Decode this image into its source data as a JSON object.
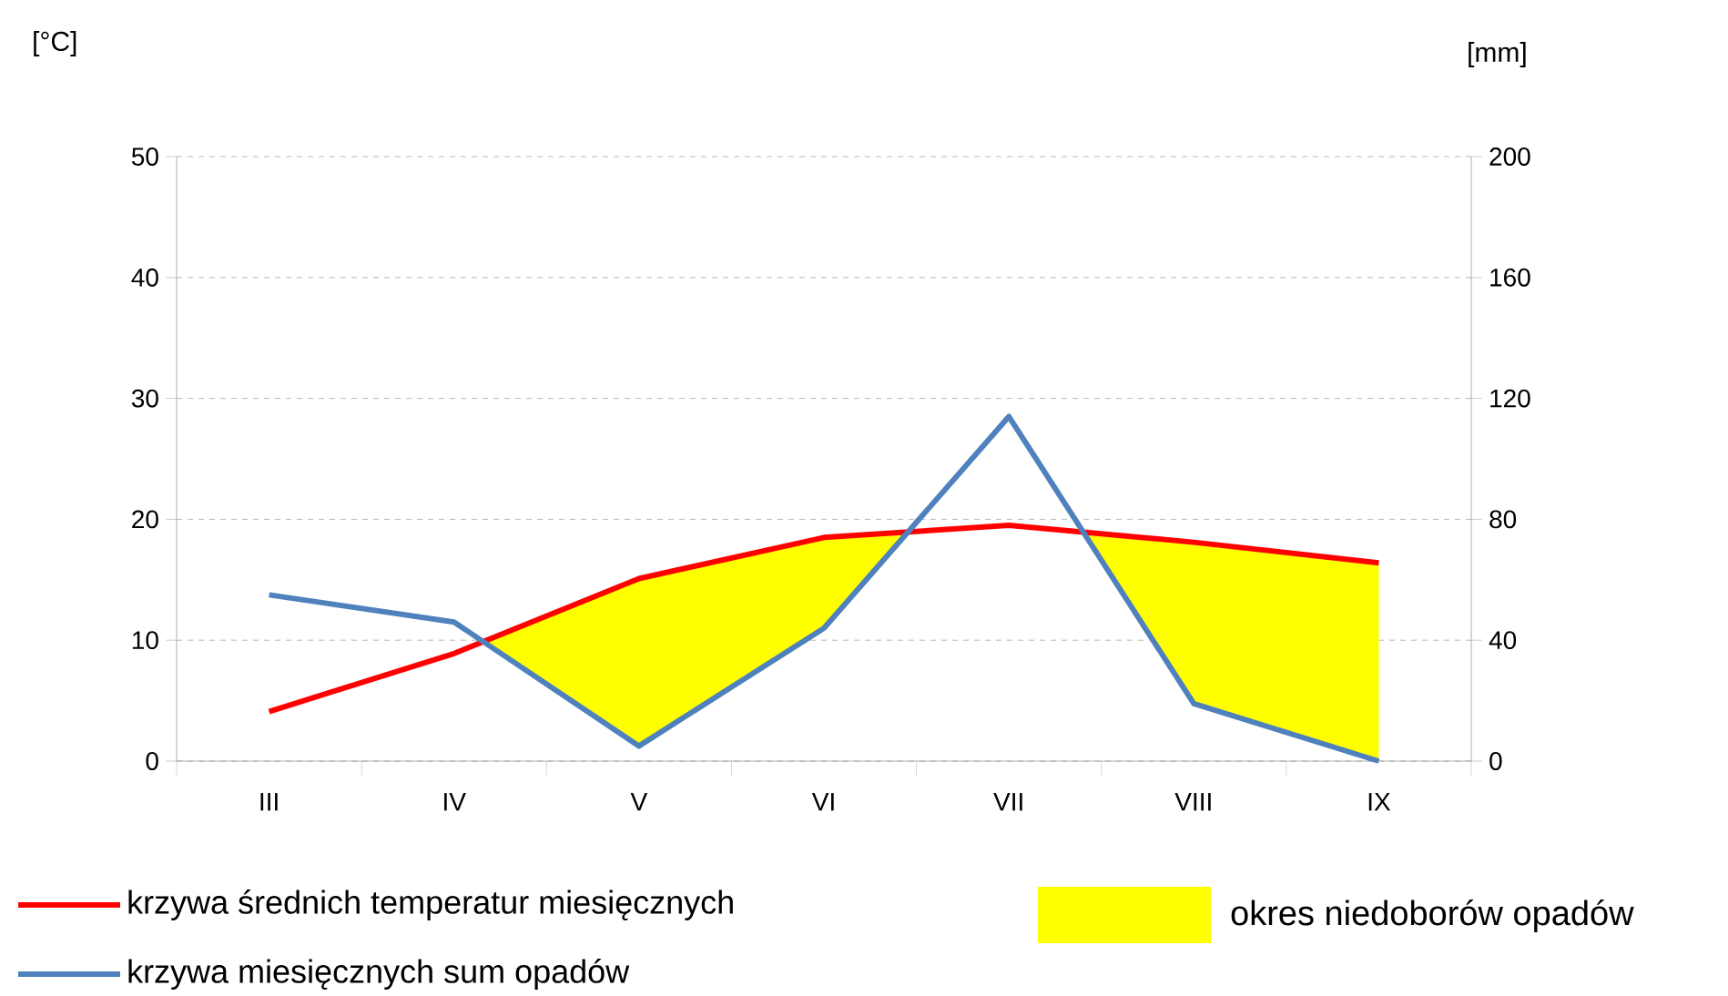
{
  "chart_data": {
    "type": "line",
    "categories": [
      "III",
      "IV",
      "V",
      "VI",
      "VII",
      "VIII",
      "IX"
    ],
    "ylabel": "[°C]",
    "y2label": "[mm]",
    "ylim": [
      0,
      50
    ],
    "yticks": [
      0,
      10,
      20,
      30,
      40,
      50
    ],
    "y2lim": [
      0,
      200
    ],
    "y2ticks": [
      0,
      40,
      80,
      120,
      160,
      200
    ],
    "grid": "y",
    "legend": "bottom",
    "series": [
      {
        "name": "krzywa średnich temperatur miesięcznych",
        "color": "#ff0000",
        "values": [
          4.1,
          8.9,
          15.1,
          18.5,
          19.5,
          18.1,
          16.4
        ],
        "lower": [
          4.1,
          8.9,
          1.25,
          11,
          19.5,
          4.75,
          0
        ],
        "upper": [
          4.1,
          8.9,
          15.1,
          18.5,
          19.5,
          18.1,
          16.4
        ]
      },
      {
        "name": "krzywa miesięcznych sum opadów",
        "color": "#4f81bd",
        "axis": "y2",
        "values": [
          55,
          46,
          5,
          44,
          114,
          19,
          0
        ]
      }
    ],
    "annotations": [
      "okres niedoborów opadów"
    ]
  }
}
